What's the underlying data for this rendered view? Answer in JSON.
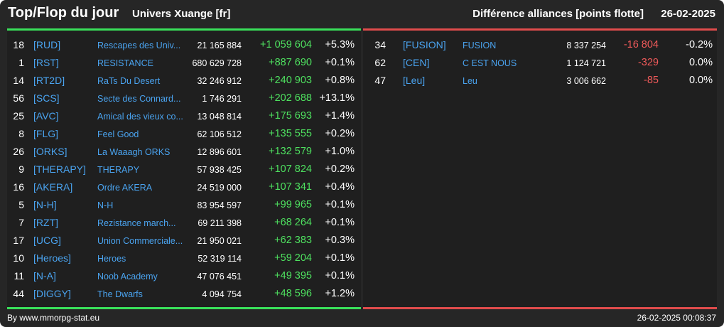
{
  "header": {
    "title": "Top/Flop du jour",
    "universe": "Univers Xuange [fr]",
    "subtitle": "Différence alliances [points flotte]",
    "date": "26-02-2025"
  },
  "colors": {
    "positive": "#4ee05f",
    "negative": "#f05a5a",
    "link": "#4aa3ef",
    "top_bar": "#39e05a",
    "flop_bar": "#e04c4c"
  },
  "top": [
    {
      "rank": "18",
      "tag": "[RUD]",
      "name": "Rescapes des Univ...",
      "points": "21 165 884",
      "diff": "+1 059 604",
      "pct": "+5.3%"
    },
    {
      "rank": "1",
      "tag": "[RST]",
      "name": "RESISTANCE",
      "points": "680 629 728",
      "diff": "+887 690",
      "pct": "+0.1%"
    },
    {
      "rank": "14",
      "tag": "[RT2D]",
      "name": "RaTs Du Desert",
      "points": "32 246 912",
      "diff": "+240 903",
      "pct": "+0.8%"
    },
    {
      "rank": "56",
      "tag": "[SCS]",
      "name": "Secte des Connard...",
      "points": "1 746 291",
      "diff": "+202 688",
      "pct": "+13.1%"
    },
    {
      "rank": "25",
      "tag": "[AVC]",
      "name": "Amical des vieux co...",
      "points": "13 048 814",
      "diff": "+175 693",
      "pct": "+1.4%"
    },
    {
      "rank": "8",
      "tag": "[FLG]",
      "name": "Feel Good",
      "points": "62 106 512",
      "diff": "+135 555",
      "pct": "+0.2%"
    },
    {
      "rank": "26",
      "tag": "[ORKS]",
      "name": "La Waaagh ORKS",
      "points": "12 896 601",
      "diff": "+132 579",
      "pct": "+1.0%"
    },
    {
      "rank": "9",
      "tag": "[THERAPY]",
      "name": "THERAPY",
      "points": "57 938 425",
      "diff": "+107 824",
      "pct": "+0.2%"
    },
    {
      "rank": "16",
      "tag": "[AKERA]",
      "name": "Ordre AKERA",
      "points": "24 519 000",
      "diff": "+107 341",
      "pct": "+0.4%"
    },
    {
      "rank": "5",
      "tag": "[N-H]",
      "name": "N-H",
      "points": "83 954 597",
      "diff": "+99 965",
      "pct": "+0.1%"
    },
    {
      "rank": "7",
      "tag": "[RZT]",
      "name": "Rezistance march...",
      "points": "69 211 398",
      "diff": "+68 264",
      "pct": "+0.1%"
    },
    {
      "rank": "17",
      "tag": "[UCG]",
      "name": "Union Commerciale...",
      "points": "21 950 021",
      "diff": "+62 383",
      "pct": "+0.3%"
    },
    {
      "rank": "10",
      "tag": "[Heroes]",
      "name": "Heroes",
      "points": "52 319 114",
      "diff": "+59 204",
      "pct": "+0.1%"
    },
    {
      "rank": "11",
      "tag": "[N-A]",
      "name": "Noob Academy",
      "points": "47 076 451",
      "diff": "+49 395",
      "pct": "+0.1%"
    },
    {
      "rank": "44",
      "tag": "[DIGGY]",
      "name": "The Dwarfs",
      "points": "4 094 754",
      "diff": "+48 596",
      "pct": "+1.2%"
    }
  ],
  "flop": [
    {
      "rank": "34",
      "tag": "[FUSION]",
      "name": "FUSION",
      "points": "8 337 254",
      "diff": "-16 804",
      "pct": "-0.2%"
    },
    {
      "rank": "62",
      "tag": "[CEN]",
      "name": "C EST NOUS",
      "points": "1 124 721",
      "diff": "-329",
      "pct": "0.0%"
    },
    {
      "rank": "47",
      "tag": "[Leu]",
      "name": "Leu",
      "points": "3 006 662",
      "diff": "-85",
      "pct": "0.0%"
    }
  ],
  "footer": {
    "credit": "By www.mmorpg-stat.eu",
    "timestamp": "26-02-2025 00:08:37"
  }
}
